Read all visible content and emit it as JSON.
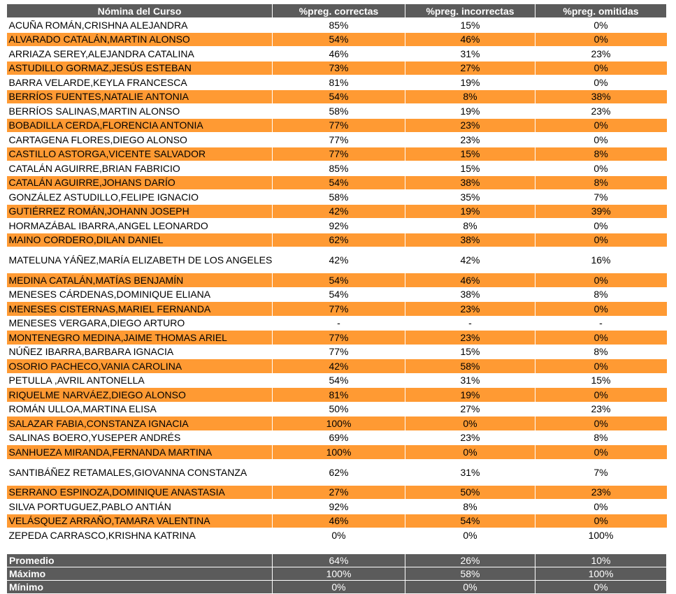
{
  "headers": [
    "Nómina del Curso",
    "%preg. correctas",
    "%preg. incorrectas",
    "%preg. omitidas"
  ],
  "rows": [
    [
      "ACUÑA ROMÁN,CRISHNA ALEJANDRA",
      "85%",
      "15%",
      "0%"
    ],
    [
      "ALVARADO CATALÁN,MARTIN ALONSO",
      "54%",
      "46%",
      "0%"
    ],
    [
      "ARRIAZA SEREY,ALEJANDRA CATALINA",
      "46%",
      "31%",
      "23%"
    ],
    [
      "ASTUDILLO GORMAZ,JESÚS ESTEBAN",
      "73%",
      "27%",
      "0%"
    ],
    [
      "BARRA VELARDE,KEYLA FRANCESCA",
      "81%",
      "19%",
      "0%"
    ],
    [
      "BERRÍOS FUENTES,NATALIE ANTONIA",
      "54%",
      "8%",
      "38%"
    ],
    [
      "BERRÍOS SALINAS,MARTIN ALONSO",
      "58%",
      "19%",
      "23%"
    ],
    [
      "BOBADILLA CERDA,FLORENCIA ANTONIA",
      "77%",
      "23%",
      "0%"
    ],
    [
      "CARTAGENA FLORES,DIEGO ALONSO",
      "77%",
      "23%",
      "0%"
    ],
    [
      "CASTILLO ASTORGA,VICENTE SALVADOR",
      "77%",
      "15%",
      "8%"
    ],
    [
      "CATALÁN AGUIRRE,BRIAN FABRICIO",
      "85%",
      "15%",
      "0%"
    ],
    [
      "CATALÁN AGUIRRE,JOHANS DARÍO",
      "54%",
      "38%",
      "8%"
    ],
    [
      "GONZÁLEZ ASTUDILLO,FELIPE IGNACIO",
      "58%",
      "35%",
      "7%"
    ],
    [
      "GUTIÉRREZ ROMÁN,JOHANN JOSEPH",
      "42%",
      "19%",
      "39%"
    ],
    [
      "HORMAZÁBAL IBARRA,ANGEL LEONARDO",
      "92%",
      "8%",
      "0%"
    ],
    [
      "MAINO CORDERO,DILAN DANIEL",
      "62%",
      "38%",
      "0%"
    ],
    [
      "MATELUNA YÁÑEZ,MARÍA ELIZABETH DE LOS ANGELES",
      "42%",
      "42%",
      "16%"
    ],
    [
      "MEDINA CATALÁN,MATÍAS BENJAMÍN",
      "54%",
      "46%",
      "0%"
    ],
    [
      "MENESES CÁRDENAS,DOMINIQUE ELIANA",
      "54%",
      "38%",
      "8%"
    ],
    [
      "MENESES CISTERNAS,MARIEL FERNANDA",
      "77%",
      "23%",
      "0%"
    ],
    [
      "MENESES VERGARA,DIEGO ARTURO",
      "-",
      "-",
      "-"
    ],
    [
      "MONTENEGRO MEDINA,JAIME THOMAS ARIEL",
      "77%",
      "23%",
      "0%"
    ],
    [
      "NÚÑEZ IBARRA,BARBARA IGNACIA",
      "77%",
      "15%",
      "8%"
    ],
    [
      "OSORIO PACHECO,VANIA CAROLINA",
      "42%",
      "58%",
      "0%"
    ],
    [
      "PETULLA ,AVRIL ANTONELLA",
      "54%",
      "31%",
      "15%"
    ],
    [
      "RIQUELME NARVÁEZ,DIEGO ALONSO",
      "81%",
      "19%",
      "0%"
    ],
    [
      "ROMÁN ULLOA,MARTINA ELISA",
      "50%",
      "27%",
      "23%"
    ],
    [
      "SALAZAR FABIA,CONSTANZA IGNACIA",
      "100%",
      "0%",
      "0%"
    ],
    [
      "SALINAS BOERO,YUSEPER ANDRÉS",
      "69%",
      "23%",
      "8%"
    ],
    [
      "SANHUEZA MIRANDA,FERNANDA MARTINA",
      "100%",
      "0%",
      "0%"
    ],
    [
      "SANTIBÁÑEZ RETAMALES,GIOVANNA CONSTANZA",
      "62%",
      "31%",
      "7%"
    ],
    [
      "SERRANO ESPINOZA,DOMINIQUE ANASTASIA",
      "27%",
      "50%",
      "23%"
    ],
    [
      "SILVA PORTUGUEZ,PABLO ANTIÁN",
      "92%",
      "8%",
      "0%"
    ],
    [
      "VELÁSQUEZ ARRAÑO,TAMARA VALENTINA",
      "46%",
      "54%",
      "0%"
    ],
    [
      "ZEPEDA CARRASCO,KRISHNA KATRINA",
      "0%",
      "0%",
      "100%"
    ]
  ],
  "summary": [
    [
      "Promedio",
      "64%",
      "26%",
      "10%"
    ],
    [
      "Máximo",
      "100%",
      "58%",
      "100%"
    ],
    [
      "Mínimo",
      "0%",
      "0%",
      "0%"
    ]
  ],
  "colors": {
    "header_bg": "#5b5b5b",
    "stripe": "#ff9a33",
    "text_header": "#ffffff"
  }
}
